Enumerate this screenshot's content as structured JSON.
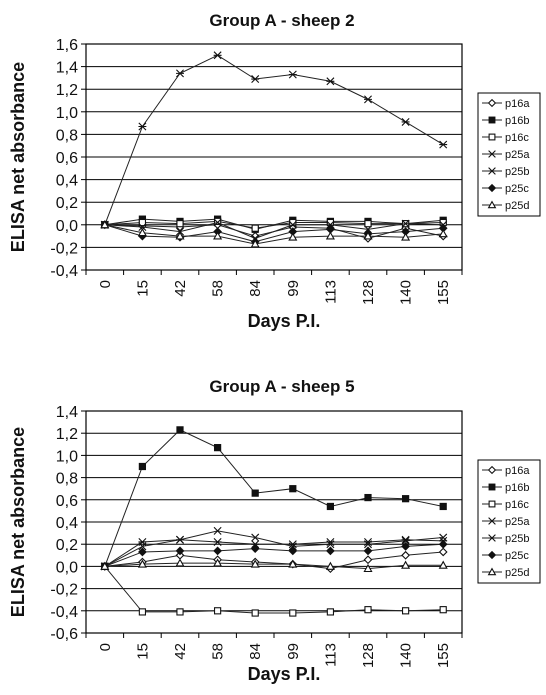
{
  "chart_data": [
    {
      "type": "line",
      "title": "Group A - sheep 2",
      "xlabel": "Days P.I.",
      "ylabel": "ELISA net absorbance",
      "categories": [
        "0",
        "15",
        "42",
        "58",
        "84",
        "99",
        "113",
        "128",
        "140",
        "155"
      ],
      "ylim": [
        -0.4,
        1.6
      ],
      "ytick_labels": [
        "1,6",
        "1,4",
        "1,2",
        "1,0",
        "0,8",
        "0,6",
        "0,4",
        "0,2",
        "0,0",
        "-0,2",
        "-0,4"
      ],
      "grid": true,
      "legend_position": "right",
      "series": [
        {
          "name": "p16a",
          "marker": "diamond-open",
          "values": [
            0,
            -0.01,
            -0.02,
            0,
            -0.1,
            -0.02,
            -0.03,
            -0.12,
            -0.03,
            -0.1
          ]
        },
        {
          "name": "p16b",
          "marker": "square-filled",
          "values": [
            0,
            0.05,
            0.03,
            0.05,
            -0.04,
            0.04,
            0.03,
            0.03,
            0.01,
            0.04
          ]
        },
        {
          "name": "p16c",
          "marker": "square-open",
          "values": [
            0,
            0.02,
            0.01,
            0.03,
            -0.03,
            0.02,
            0.02,
            0.01,
            0.01,
            0.02
          ]
        },
        {
          "name": "p25a",
          "marker": "x",
          "values": [
            0,
            -0.02,
            -0.06,
            0.02,
            -0.12,
            0.0,
            0.0,
            -0.04,
            0.01,
            0.0
          ]
        },
        {
          "name": "p25b",
          "marker": "star",
          "values": [
            0,
            0.87,
            1.34,
            1.5,
            1.29,
            1.33,
            1.27,
            1.11,
            0.91,
            0.71
          ]
        },
        {
          "name": "p25c",
          "marker": "diamond-filled",
          "values": [
            0,
            -0.1,
            -0.11,
            -0.06,
            -0.15,
            -0.06,
            -0.04,
            -0.08,
            -0.06,
            -0.03
          ]
        },
        {
          "name": "p25d",
          "marker": "triangle-open",
          "values": [
            0,
            -0.07,
            -0.1,
            -0.1,
            -0.17,
            -0.11,
            -0.1,
            -0.1,
            -0.11,
            -0.08
          ]
        }
      ]
    },
    {
      "type": "line",
      "title": "Group A - sheep 5",
      "xlabel": "Days P.I.",
      "ylabel": "ELISA net absorbance",
      "categories": [
        "0",
        "15",
        "42",
        "58",
        "84",
        "99",
        "113",
        "128",
        "140",
        "155"
      ],
      "ylim": [
        -0.6,
        1.4
      ],
      "ytick_labels": [
        "1,4",
        "1,2",
        "1,0",
        "0,8",
        "0,6",
        "0,4",
        "0,2",
        "0,0",
        "-0,2",
        "-0,4",
        "-0,6"
      ],
      "grid": true,
      "legend_position": "right",
      "series": [
        {
          "name": "p16a",
          "marker": "diamond-open",
          "values": [
            0,
            0.04,
            0.1,
            0.06,
            0.04,
            0.02,
            -0.02,
            0.06,
            0.1,
            0.13
          ]
        },
        {
          "name": "p16b",
          "marker": "square-filled",
          "values": [
            0,
            0.9,
            1.23,
            1.07,
            0.66,
            0.7,
            0.54,
            0.62,
            0.61,
            0.54
          ]
        },
        {
          "name": "p16c",
          "marker": "square-open",
          "values": [
            0,
            -0.41,
            -0.41,
            -0.4,
            -0.42,
            -0.42,
            -0.41,
            -0.39,
            -0.4,
            -0.39
          ]
        },
        {
          "name": "p25a",
          "marker": "x",
          "values": [
            0,
            0.18,
            0.24,
            0.32,
            0.26,
            0.18,
            0.2,
            0.2,
            0.23,
            0.26
          ]
        },
        {
          "name": "p25b",
          "marker": "star",
          "values": [
            0,
            0.22,
            0.24,
            0.22,
            0.2,
            0.2,
            0.22,
            0.22,
            0.24,
            0.23
          ]
        },
        {
          "name": "p25c",
          "marker": "diamond-filled",
          "values": [
            0,
            0.13,
            0.14,
            0.14,
            0.16,
            0.14,
            0.14,
            0.14,
            0.18,
            0.2
          ]
        },
        {
          "name": "p25d",
          "marker": "triangle-open",
          "values": [
            0,
            0.02,
            0.03,
            0.03,
            0.02,
            0.02,
            0.0,
            -0.02,
            0.01,
            0.01
          ]
        }
      ]
    }
  ]
}
